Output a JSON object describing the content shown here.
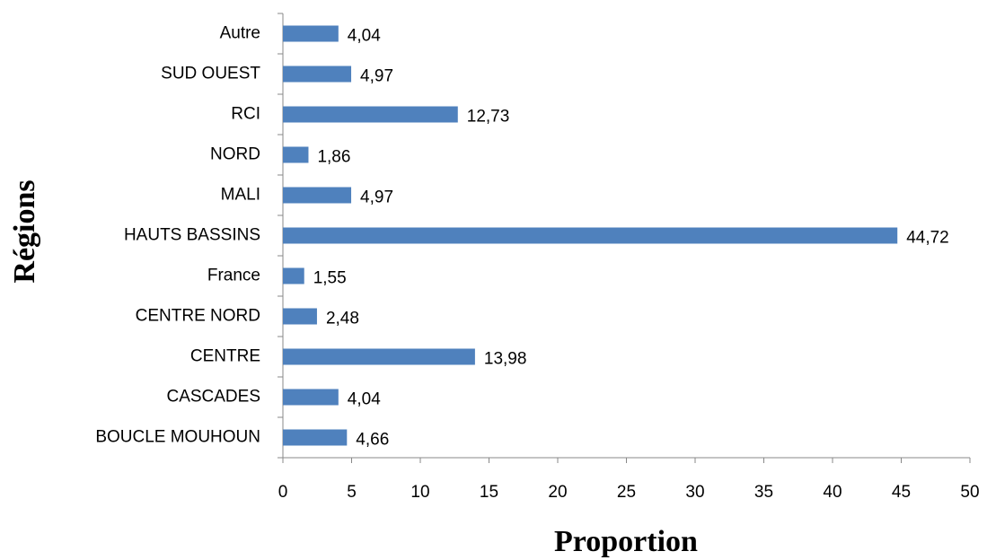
{
  "chart_data": {
    "type": "bar",
    "orientation": "horizontal",
    "x_label": "Proportion",
    "y_label": "Régions",
    "categories": [
      "BOUCLE MOUHOUN",
      "CASCADES",
      "CENTRE",
      "CENTRE NORD",
      "France",
      "HAUTS BASSINS",
      "MALI",
      "NORD",
      "RCI",
      "SUD OUEST",
      "Autre"
    ],
    "values": [
      4.66,
      4.04,
      13.98,
      2.48,
      1.55,
      44.72,
      4.97,
      1.86,
      12.73,
      4.97,
      4.04
    ],
    "value_labels": [
      "4,66",
      "4,04",
      "13,98",
      "2,48",
      "1,55",
      "44,72",
      "4,97",
      "1,86",
      "12,73",
      "4,97",
      "4,04"
    ],
    "color": "#4f81bd",
    "xlim": [
      0,
      50
    ],
    "xticks": [
      0,
      5,
      10,
      15,
      20,
      25,
      30,
      35,
      40,
      45,
      50
    ]
  }
}
